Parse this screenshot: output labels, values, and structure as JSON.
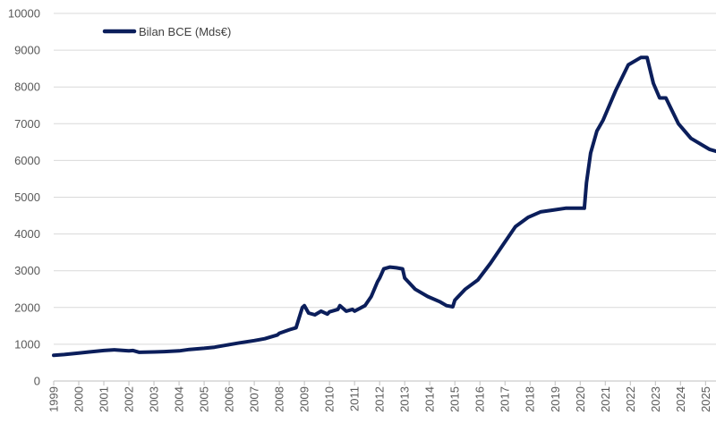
{
  "chart_data": {
    "type": "line",
    "title": "",
    "xlabel": "",
    "ylabel": "",
    "ylim": [
      0,
      10000
    ],
    "y_ticks": [
      0,
      1000,
      2000,
      3000,
      4000,
      5000,
      6000,
      7000,
      8000,
      9000,
      10000
    ],
    "x_ticks": [
      "1999",
      "2000",
      "2001",
      "2002",
      "2003",
      "2004",
      "2005",
      "2006",
      "2007",
      "2008",
      "2009",
      "2010",
      "2011",
      "2012",
      "2013",
      "2014",
      "2015",
      "2016",
      "2017",
      "2018",
      "2019",
      "2020",
      "2021",
      "2022",
      "2023",
      "2024",
      "2025"
    ],
    "xlim": [
      "1999-01",
      "2025-06"
    ],
    "grid": "horizontal",
    "legend_position": "top-left",
    "series": [
      {
        "name": "Bilan BCE (Mds€)",
        "color": "#0b1e5b",
        "x": [
          "1999-01",
          "1999-06",
          "2000-01",
          "2000-06",
          "2001-01",
          "2001-06",
          "2002-01",
          "2002-03",
          "2002-06",
          "2003-01",
          "2003-06",
          "2004-01",
          "2004-06",
          "2005-01",
          "2005-06",
          "2006-01",
          "2006-06",
          "2007-01",
          "2007-06",
          "2007-12",
          "2008-01",
          "2008-06",
          "2008-09",
          "2008-12",
          "2009-01",
          "2009-03",
          "2009-06",
          "2009-09",
          "2009-12",
          "2010-01",
          "2010-05",
          "2010-06",
          "2010-09",
          "2010-12",
          "2011-01",
          "2011-06",
          "2011-09",
          "2011-12",
          "2012-01",
          "2012-03",
          "2012-06",
          "2012-09",
          "2012-12",
          "2013-01",
          "2013-06",
          "2013-12",
          "2014-06",
          "2014-09",
          "2014-12",
          "2015-01",
          "2015-06",
          "2015-12",
          "2016-06",
          "2016-12",
          "2017-06",
          "2017-12",
          "2018-06",
          "2018-12",
          "2019-06",
          "2019-12",
          "2020-03",
          "2020-04",
          "2020-06",
          "2020-09",
          "2020-12",
          "2021-06",
          "2021-12",
          "2022-06",
          "2022-09",
          "2022-12",
          "2023-03",
          "2023-06",
          "2023-12",
          "2024-06",
          "2024-12",
          "2025-03",
          "2025-06"
        ],
        "values": [
          700,
          720,
          760,
          790,
          830,
          850,
          820,
          830,
          780,
          790,
          800,
          820,
          860,
          890,
          920,
          990,
          1040,
          1100,
          1150,
          1250,
          1300,
          1400,
          1450,
          2000,
          2050,
          1850,
          1800,
          1900,
          1820,
          1880,
          1950,
          2050,
          1900,
          1950,
          1900,
          2050,
          2300,
          2700,
          2800,
          3050,
          3100,
          3080,
          3050,
          2800,
          2500,
          2300,
          2150,
          2050,
          2020,
          2200,
          2500,
          2750,
          3200,
          3700,
          4200,
          4450,
          4600,
          4650,
          4700,
          4700,
          4700,
          5400,
          6200,
          6800,
          7100,
          7900,
          8600,
          8800,
          8800,
          8100,
          7700,
          7700,
          7000,
          6600,
          6400,
          6300,
          6250
        ]
      }
    ]
  }
}
